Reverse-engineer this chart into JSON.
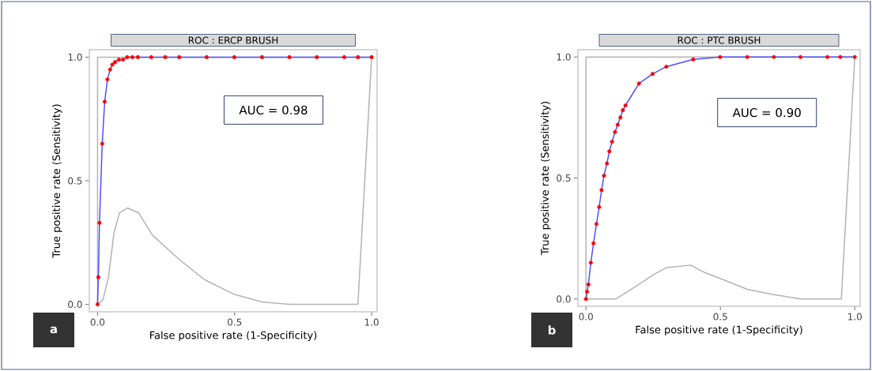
{
  "chart_data": [
    {
      "type": "line",
      "title": "ROC : ERCP BRUSH",
      "xlabel": "False positive rate (1-Specificity)",
      "ylabel": "True positive rate (Sensitivity)",
      "annotations": [
        "AUC = 0.98",
        "a"
      ],
      "xlim": [
        -0.03,
        1.02
      ],
      "ylim": [
        -0.03,
        1.03
      ],
      "xticks": [
        {
          "value": 0,
          "label": "0.0"
        },
        {
          "value": 0.5,
          "label": "0.5"
        },
        {
          "value": 1,
          "label": "1.0"
        }
      ],
      "yticks": [
        {
          "value": 0,
          "label": "0.0"
        },
        {
          "value": 0.5,
          "label": "0.5"
        },
        {
          "value": 1,
          "label": "1.0"
        }
      ],
      "ref_lines": [
        {
          "axis": "x",
          "value": 0,
          "color": "#b3b3b3"
        },
        {
          "axis": "y",
          "value": 1,
          "color": "#b3b3b3"
        }
      ],
      "series": [
        {
          "type": "line",
          "color": "#b3b3b3",
          "x": [
            0,
            0.02,
            0.04,
            0.06,
            0.08,
            0.11,
            0.15,
            0.2,
            0.3,
            0.39,
            0.5,
            0.6,
            0.7,
            0.95,
            1
          ],
          "values": [
            0,
            0.02,
            0.11,
            0.29,
            0.37,
            0.39,
            0.37,
            0.28,
            0.18,
            0.1,
            0.04,
            0.01,
            0,
            0,
            1
          ]
        },
        {
          "type": "line",
          "color": "#4f4fff",
          "x": [
            0,
            0.003,
            0.007,
            0.017,
            0.026,
            0.036,
            0.046,
            0.054,
            0.064,
            0.078,
            0.093,
            0.108,
            0.127,
            0.147,
            0.196,
            0.247,
            0.298,
            0.398,
            0.499,
            0.6,
            0.7,
            0.8,
            0.9,
            0.95,
            1
          ],
          "values": [
            0,
            0.11,
            0.33,
            0.65,
            0.82,
            0.91,
            0.95,
            0.97,
            0.98,
            0.99,
            0.99,
            1,
            1,
            1,
            1,
            1,
            1,
            1,
            1,
            1,
            1,
            1,
            1,
            1,
            1
          ]
        },
        {
          "type": "scatter",
          "color": "#ff0000",
          "marker": "circle",
          "x": [
            0,
            0.003,
            0.007,
            0.017,
            0.026,
            0.036,
            0.046,
            0.054,
            0.064,
            0.078,
            0.093,
            0.108,
            0.127,
            0.147,
            0.196,
            0.247,
            0.298,
            0.398,
            0.499,
            0.6,
            0.7,
            0.8,
            0.9,
            0.95,
            1
          ],
          "values": [
            0,
            0.11,
            0.33,
            0.65,
            0.82,
            0.91,
            0.95,
            0.97,
            0.98,
            0.99,
            0.99,
            1,
            1,
            1,
            1,
            1,
            1,
            1,
            1,
            1,
            1,
            1,
            1,
            1,
            1
          ]
        }
      ]
    },
    {
      "type": "line",
      "title": "ROC : PTC BRUSH",
      "xlabel": "False positive rate (1-Specificity)",
      "ylabel": "True positive rate (Sensitivity)",
      "annotations": [
        "AUC = 0.90",
        "b"
      ],
      "xlim": [
        -0.03,
        1.02
      ],
      "ylim": [
        -0.03,
        1.03
      ],
      "xticks": [
        {
          "value": 0,
          "label": "0.0"
        },
        {
          "value": 0.5,
          "label": "0.5"
        },
        {
          "value": 1,
          "label": "1.0"
        }
      ],
      "yticks": [
        {
          "value": 0,
          "label": "0.0"
        },
        {
          "value": 0.5,
          "label": "0.5"
        },
        {
          "value": 1,
          "label": "1.0"
        }
      ],
      "ref_lines": [
        {
          "axis": "x",
          "value": 0,
          "color": "#b3b3b3"
        },
        {
          "axis": "y",
          "value": 1,
          "color": "#b3b3b3"
        }
      ],
      "series": [
        {
          "type": "line",
          "color": "#b3b3b3",
          "x": [
            0,
            0.11,
            0.14,
            0.21,
            0.25,
            0.3,
            0.39,
            0.44,
            0.51,
            0.6,
            0.69,
            0.8,
            0.95,
            1
          ],
          "values": [
            0,
            0,
            0.02,
            0.07,
            0.1,
            0.13,
            0.14,
            0.11,
            0.08,
            0.04,
            0.02,
            0,
            0,
            1
          ]
        },
        {
          "type": "line",
          "color": "#4f4fff",
          "x": [
            0,
            0.004,
            0.009,
            0.018,
            0.028,
            0.039,
            0.049,
            0.058,
            0.067,
            0.078,
            0.087,
            0.097,
            0.108,
            0.118,
            0.128,
            0.137,
            0.147,
            0.197,
            0.248,
            0.299,
            0.399,
            0.499,
            0.6,
            0.699,
            0.798,
            0.898,
            0.946,
            1
          ],
          "values": [
            0,
            0.03,
            0.06,
            0.15,
            0.23,
            0.31,
            0.38,
            0.45,
            0.51,
            0.56,
            0.61,
            0.65,
            0.69,
            0.72,
            0.75,
            0.78,
            0.8,
            0.89,
            0.93,
            0.96,
            0.99,
            1,
            1,
            1,
            1,
            1,
            1,
            1
          ]
        },
        {
          "type": "scatter",
          "color": "#ff0000",
          "marker": "circle",
          "x": [
            0,
            0.004,
            0.009,
            0.018,
            0.028,
            0.039,
            0.049,
            0.058,
            0.067,
            0.078,
            0.087,
            0.097,
            0.108,
            0.118,
            0.128,
            0.137,
            0.147,
            0.197,
            0.248,
            0.299,
            0.399,
            0.499,
            0.6,
            0.699,
            0.798,
            0.898,
            0.946,
            1
          ],
          "values": [
            0,
            0.03,
            0.06,
            0.15,
            0.23,
            0.31,
            0.38,
            0.45,
            0.51,
            0.56,
            0.61,
            0.65,
            0.69,
            0.72,
            0.75,
            0.78,
            0.8,
            0.89,
            0.93,
            0.96,
            0.99,
            1,
            1,
            1,
            1,
            1,
            1,
            1
          ]
        }
      ]
    }
  ]
}
